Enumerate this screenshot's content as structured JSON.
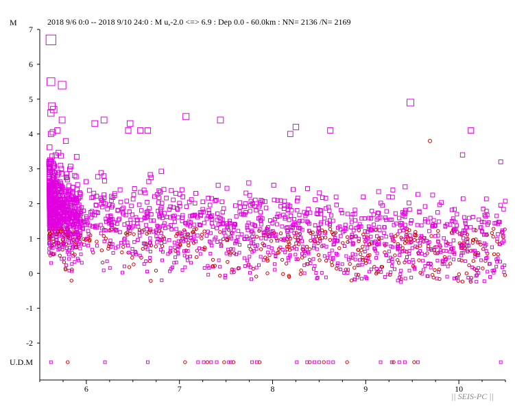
{
  "header": {
    "axis_label": "M",
    "query": "2018 9/6 0:0 -- 2018 9/10 24:0  : M u,-2.0 <=> 6.9   :  Dep 0.0 - 60.0km :  NN= 2136 /N= 2169"
  },
  "udm_label": "U.D.M",
  "brand": "|| SEIS-PC ||",
  "colors": {
    "magenta": "#e000e0",
    "red": "#d00000",
    "axis": "#000000"
  },
  "chart_data": {
    "type": "scatter",
    "title": "",
    "xlabel": "",
    "ylabel": "M",
    "xlim": [
      5.5,
      10.5
    ],
    "ylim": [
      -3,
      7
    ],
    "x_ticks": [
      6,
      7,
      8,
      9,
      10
    ],
    "y_ticks": [
      7,
      6,
      5,
      4,
      3,
      2,
      1,
      0,
      -1,
      -2
    ],
    "x_tick_labels": [
      "6",
      "7",
      "8",
      "9",
      "10"
    ],
    "y_tick_labels": [
      "7",
      "6",
      "5",
      "4",
      "3",
      "2",
      "1",
      "0",
      "-1",
      "-2"
    ],
    "grid": false,
    "marker_note": "squares sized by magnitude; small red circles for low-magnitude events",
    "large_events": [
      {
        "day": 5.62,
        "mag": 6.7
      },
      {
        "day": 5.62,
        "mag": 5.5
      },
      {
        "day": 5.74,
        "mag": 5.4
      },
      {
        "day": 5.63,
        "mag": 4.8
      },
      {
        "day": 5.65,
        "mag": 4.7
      },
      {
        "day": 5.62,
        "mag": 4.6
      },
      {
        "day": 5.74,
        "mag": 4.4
      },
      {
        "day": 5.64,
        "mag": 4.05
      },
      {
        "day": 5.69,
        "mag": 4.1
      },
      {
        "day": 5.62,
        "mag": 4.0
      },
      {
        "day": 5.78,
        "mag": 3.8
      },
      {
        "day": 6.09,
        "mag": 4.3
      },
      {
        "day": 6.19,
        "mag": 4.4
      },
      {
        "day": 6.47,
        "mag": 4.3
      },
      {
        "day": 6.45,
        "mag": 4.1
      },
      {
        "day": 6.58,
        "mag": 4.1
      },
      {
        "day": 6.66,
        "mag": 4.1
      },
      {
        "day": 7.07,
        "mag": 4.5
      },
      {
        "day": 7.44,
        "mag": 4.4
      },
      {
        "day": 8.25,
        "mag": 4.2
      },
      {
        "day": 8.19,
        "mag": 4.0
      },
      {
        "day": 8.62,
        "mag": 4.1
      },
      {
        "day": 9.48,
        "mag": 4.9
      },
      {
        "day": 9.69,
        "mag": 3.8
      },
      {
        "day": 10.13,
        "mag": 4.1
      },
      {
        "day": 10.04,
        "mag": 3.4
      },
      {
        "day": 10.45,
        "mag": 3.2
      }
    ],
    "background_events": {
      "count": 2136,
      "generator_seed": 20180906,
      "day_range": [
        5.6,
        10.5
      ],
      "udm_events_days": [
        5.62,
        5.8,
        6.2,
        6.66,
        7.06,
        7.2,
        7.26,
        7.3,
        7.34,
        7.4,
        7.48,
        7.53,
        7.55,
        7.58,
        7.78,
        7.83,
        7.86,
        8.26,
        8.37,
        8.4,
        8.45,
        8.5,
        8.55,
        8.6,
        8.65,
        8.8,
        9.16,
        9.28,
        9.3,
        9.36,
        9.42,
        9.52,
        9.56,
        10.45
      ]
    }
  }
}
